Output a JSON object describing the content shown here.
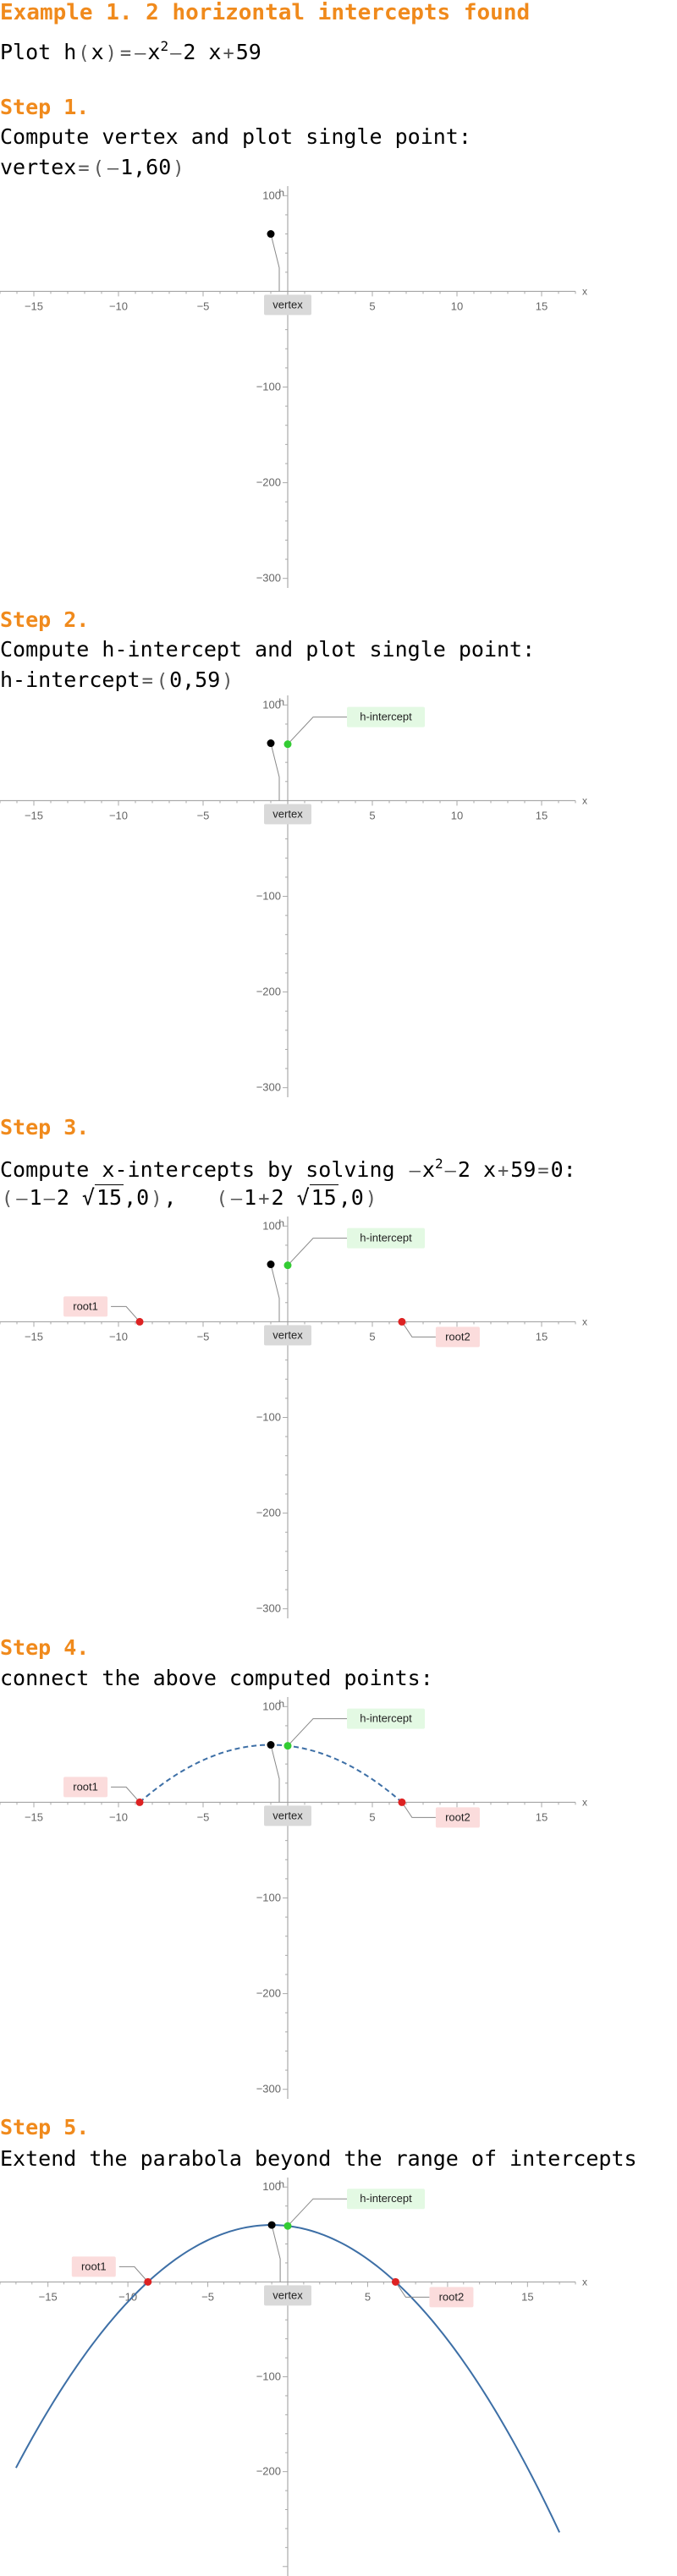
{
  "header": {
    "title": "Example 1. 2 horizontal intercepts found",
    "plot_prefix": "Plot h",
    "plot_function": "-x^2 - 2x + 59"
  },
  "steps": [
    {
      "title": "Step 1.",
      "text": "Compute vertex and plot single point:",
      "result_label": "vertex",
      "result_value": "(-1,60)"
    },
    {
      "title": "Step 2.",
      "text": "Compute h-intercept and plot single point:",
      "result_label": "h-intercept",
      "result_value": "(0,59)"
    },
    {
      "title": "Step 3.",
      "text_prefix": "Compute x-intercepts by solving",
      "equation": "-x^2 - 2x + 59 = 0",
      "root1": "(-1-2√15,0)",
      "root2": "(-1+2√15,0)"
    },
    {
      "title": "Step 4.",
      "text": "connect the above computed points:"
    },
    {
      "title": "Step 5.",
      "text": "Extend the parabola beyond the range of intercepts"
    }
  ],
  "chart_labels": {
    "x_axis": "x",
    "y_axis": "h",
    "vertex": "vertex",
    "h_intercept": "h-intercept",
    "root1": "root1",
    "root2": "root2"
  },
  "colors": {
    "accent": "#f08a1c",
    "curve": "#3d6fa6",
    "vertex_point": "#000000",
    "h_intercept_point": "#33cc33",
    "root_point": "#dd2222",
    "vertex_label_bg": "#d9d9d9",
    "h_intercept_label_bg": "#e3f9e3",
    "root_label_bg": "#fbdcdc"
  },
  "chart_data": [
    {
      "type": "scatter",
      "function": "h(x) = -x^2 - 2x + 59",
      "xlabel": "x",
      "ylabel": "h",
      "xlim": [
        -17,
        17
      ],
      "ylim": [
        -310,
        110
      ],
      "x_ticks": [
        -15,
        -10,
        -5,
        5,
        10,
        15
      ],
      "y_ticks": [
        100,
        -100,
        -200,
        -300
      ],
      "points": [
        {
          "name": "vertex",
          "x": -1,
          "y": 60
        }
      ]
    },
    {
      "type": "scatter",
      "function": "h(x) = -x^2 - 2x + 59",
      "xlabel": "x",
      "ylabel": "h",
      "xlim": [
        -17,
        17
      ],
      "ylim": [
        -310,
        110
      ],
      "x_ticks": [
        -15,
        -10,
        -5,
        5,
        10,
        15
      ],
      "y_ticks": [
        100,
        -100,
        -200,
        -300
      ],
      "points": [
        {
          "name": "vertex",
          "x": -1,
          "y": 60
        },
        {
          "name": "h-intercept",
          "x": 0,
          "y": 59
        }
      ]
    },
    {
      "type": "scatter",
      "function": "h(x) = -x^2 - 2x + 59",
      "xlabel": "x",
      "ylabel": "h",
      "xlim": [
        -17,
        17
      ],
      "ylim": [
        -310,
        110
      ],
      "x_ticks": [
        -15,
        -10,
        -5,
        5,
        10,
        15
      ],
      "y_ticks": [
        100,
        -100,
        -200,
        -300
      ],
      "points": [
        {
          "name": "vertex",
          "x": -1,
          "y": 60
        },
        {
          "name": "h-intercept",
          "x": 0,
          "y": 59
        },
        {
          "name": "root1",
          "x": -8.746,
          "y": 0
        },
        {
          "name": "root2",
          "x": 6.746,
          "y": 0
        }
      ]
    },
    {
      "type": "line",
      "function": "h(x) = -x^2 - 2x + 59",
      "xlabel": "x",
      "ylabel": "h",
      "xlim": [
        -17,
        17
      ],
      "ylim": [
        -310,
        110
      ],
      "x_ticks": [
        -15,
        -10,
        -5,
        5,
        10,
        15
      ],
      "y_ticks": [
        100,
        -100,
        -200,
        -300
      ],
      "curve_range": [
        -8.746,
        6.746
      ],
      "curve_style": "dashed",
      "points": [
        {
          "name": "vertex",
          "x": -1,
          "y": 60
        },
        {
          "name": "h-intercept",
          "x": 0,
          "y": 59
        },
        {
          "name": "root1",
          "x": -8.746,
          "y": 0
        },
        {
          "name": "root2",
          "x": 6.746,
          "y": 0
        }
      ]
    },
    {
      "type": "line",
      "function": "h(x) = -x^2 - 2x + 59",
      "xlabel": "x",
      "ylabel": "h",
      "xlim": [
        -18,
        18
      ],
      "ylim": [
        -310,
        110
      ],
      "x_ticks": [
        -15,
        -10,
        -5,
        5,
        10,
        15
      ],
      "y_ticks": [
        100,
        -100,
        -200
      ],
      "curve_range": [
        -17,
        17
      ],
      "curve_style": "solid",
      "points": [
        {
          "name": "vertex",
          "x": -1,
          "y": 60
        },
        {
          "name": "h-intercept",
          "x": 0,
          "y": 59
        },
        {
          "name": "root1",
          "x": -8.746,
          "y": 0
        },
        {
          "name": "root2",
          "x": 6.746,
          "y": 0
        }
      ]
    }
  ]
}
